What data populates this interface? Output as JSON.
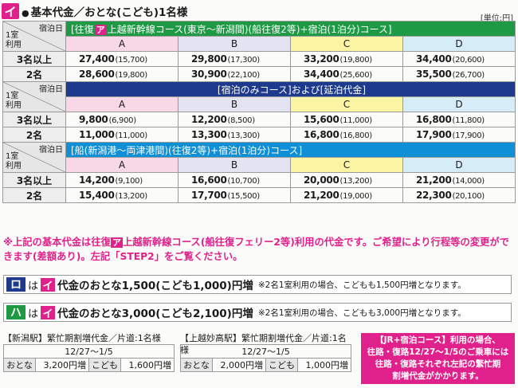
{
  "title": {
    "badge": "イ",
    "bullet": "●",
    "text": "基本代金／おとな(こども)1名様"
  },
  "unit": "[単位:円]",
  "corner": {
    "stay": "宿泊日",
    "room_line1": "1室",
    "room_line2": "利用"
  },
  "sections": [
    {
      "color": "green",
      "course_prefix": "[往復",
      "course_tag": "ア",
      "course_suffix": "上越新幹線コース(東京〜新潟間)(船往復2等)+宿泊(1泊分)コース]",
      "classes": [
        "A",
        "B",
        "C",
        "D"
      ],
      "rows": [
        {
          "label": "3名以上",
          "values": [
            [
              "27,400",
              "(15,700)"
            ],
            [
              "29,800",
              "(17,300)"
            ],
            [
              "33,200",
              "(19,800)"
            ],
            [
              "34,400",
              "(20,600)"
            ]
          ]
        },
        {
          "label": "2名",
          "values": [
            [
              "28,600",
              "(19,800)"
            ],
            [
              "30,900",
              "(22,100)"
            ],
            [
              "34,400",
              "(25,600)"
            ],
            [
              "35,500",
              "(26,700)"
            ]
          ]
        }
      ]
    },
    {
      "color": "navy",
      "course_prefix": "[宿泊のみコース]および[延泊代金]",
      "course_tag": "",
      "course_suffix": "",
      "classes": [
        "A",
        "B",
        "C",
        "D"
      ],
      "rows": [
        {
          "label": "3名以上",
          "values": [
            [
              "9,800",
              "(6,900)"
            ],
            [
              "12,200",
              "(8,500)"
            ],
            [
              "15,600",
              "(11,000)"
            ],
            [
              "16,800",
              "(11,800)"
            ]
          ]
        },
        {
          "label": "2名",
          "values": [
            [
              "11,000",
              "(11,000)"
            ],
            [
              "13,300",
              "(13,300)"
            ],
            [
              "16,800",
              "(16,800)"
            ],
            [
              "17,900",
              "(17,900)"
            ]
          ]
        }
      ]
    },
    {
      "color": "blue",
      "course_prefix": "[船(新潟港〜両津港間)(往復2等)+宿泊(1泊分)コース]",
      "course_tag": "",
      "course_suffix": "",
      "classes": [
        "A",
        "B",
        "C",
        "D"
      ],
      "rows": [
        {
          "label": "3名以上",
          "values": [
            [
              "14,200",
              "(9,100)"
            ],
            [
              "16,600",
              "(10,700)"
            ],
            [
              "20,000",
              "(13,200)"
            ],
            [
              "21,200",
              "(14,000)"
            ]
          ]
        },
        {
          "label": "2名",
          "values": [
            [
              "15,400",
              "(13,200)"
            ],
            [
              "17,700",
              "(15,500)"
            ],
            [
              "21,200",
              "(19,000)"
            ],
            [
              "22,300",
              "(20,100)"
            ]
          ]
        }
      ]
    }
  ],
  "note": {
    "pre": "※上記の基本代金は往復",
    "tag": "ア",
    "post": "上越新幹線コース(船往復フェリー2等)利用の代金です。ご希望により行程等の変更ができます(差額あり)。左記「STEP2」をご覧ください。"
  },
  "extras": [
    {
      "badge": "ロ",
      "ha": "は",
      "ibadge": "イ",
      "main": "代金のおとな1,500(こども1,000)円増",
      "sub": "※2名1室利用の場合、こどもも1,500円増となります。"
    },
    {
      "badge": "ハ",
      "ha": "は",
      "ibadge": "イ",
      "main": "代金のおとな3,000(こども2,100)円増",
      "sub": "※2名1室利用の場合、こどもも3,000円増となります。"
    }
  ],
  "surcharges": [
    {
      "caption": "【新潟駅】繁忙期割増代金／片道:1名様",
      "period": "12/27〜1/5",
      "adult_label": "おとな",
      "adult_amount": "3,200円増",
      "child_label": "こども",
      "child_amount": "1,600円増"
    },
    {
      "caption": "【上越妙高駅】繁忙期割増代金／片道:1名様",
      "period": "12/27〜1/5",
      "adult_label": "おとな",
      "adult_amount": "2,000円増",
      "child_label": "こども",
      "child_amount": "1,000円増"
    }
  ],
  "jr_note": {
    "line1": "【JR+宿泊コース】利用の場合、",
    "line2": "往路・復路12/27〜1/5のご乗車には",
    "line3": "往路・復路それぞれ左記の繁忙期",
    "line4": "割増代金がかかります。"
  }
}
